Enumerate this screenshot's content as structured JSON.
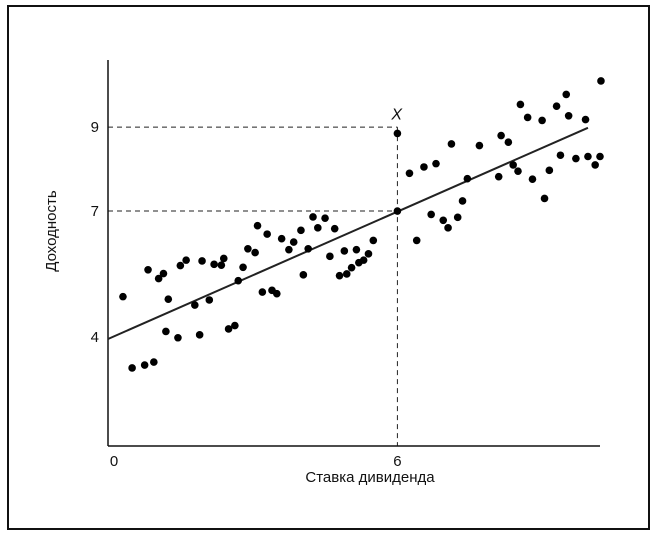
{
  "chart_data": {
    "type": "scatter",
    "title": "",
    "xlabel": "Ставка дивиденда",
    "ylabel": "Доходность",
    "xlim": [
      0,
      10.2
    ],
    "ylim": [
      1.4,
      10.6
    ],
    "x_ticks": [
      {
        "value": 0,
        "label": "0"
      },
      {
        "value": 6,
        "label": "6"
      }
    ],
    "y_ticks": [
      {
        "value": 4,
        "label": "4"
      },
      {
        "value": 7,
        "label": "7"
      },
      {
        "value": 9,
        "label": "9"
      }
    ],
    "grid": false,
    "regression_line": {
      "intercept": 3.95,
      "slope": 0.506,
      "x_range": [
        0,
        10.2
      ]
    },
    "highlight_point": {
      "x": 6,
      "y": 8.85,
      "label": "X"
    },
    "reference_lines": [
      {
        "from": [
          0,
          9
        ],
        "to": [
          6,
          9
        ]
      },
      {
        "from": [
          0,
          7
        ],
        "to": [
          6,
          7
        ]
      },
      {
        "from": [
          6,
          9
        ],
        "to": [
          6,
          1.4
        ]
      }
    ],
    "series": [
      {
        "color": "#000000",
        "points": [
          [
            0.31,
            4.96
          ],
          [
            0.5,
            3.26
          ],
          [
            0.76,
            3.33
          ],
          [
            0.95,
            3.4
          ],
          [
            0.83,
            5.6
          ],
          [
            1.05,
            5.39
          ],
          [
            1.15,
            5.51
          ],
          [
            1.25,
            4.9
          ],
          [
            1.2,
            4.13
          ],
          [
            1.45,
            3.98
          ],
          [
            1.5,
            5.7
          ],
          [
            1.62,
            5.83
          ],
          [
            1.8,
            4.76
          ],
          [
            1.9,
            4.05
          ],
          [
            1.95,
            5.81
          ],
          [
            2.1,
            4.88
          ],
          [
            2.2,
            5.73
          ],
          [
            2.35,
            5.71
          ],
          [
            2.4,
            5.87
          ],
          [
            2.5,
            4.19
          ],
          [
            2.63,
            4.27
          ],
          [
            2.7,
            5.34
          ],
          [
            2.8,
            5.66
          ],
          [
            2.9,
            6.1
          ],
          [
            3.05,
            6.01
          ],
          [
            3.1,
            6.65
          ],
          [
            3.2,
            5.07
          ],
          [
            3.3,
            6.45
          ],
          [
            3.4,
            5.11
          ],
          [
            3.5,
            5.03
          ],
          [
            3.6,
            6.34
          ],
          [
            3.75,
            6.08
          ],
          [
            3.85,
            6.26
          ],
          [
            4.0,
            6.54
          ],
          [
            4.05,
            5.48
          ],
          [
            4.15,
            6.1
          ],
          [
            4.25,
            6.86
          ],
          [
            4.35,
            6.6
          ],
          [
            4.5,
            6.83
          ],
          [
            4.6,
            5.92
          ],
          [
            4.7,
            6.58
          ],
          [
            4.8,
            5.46
          ],
          [
            4.9,
            6.05
          ],
          [
            4.95,
            5.5
          ],
          [
            5.05,
            5.65
          ],
          [
            5.15,
            6.08
          ],
          [
            5.2,
            5.77
          ],
          [
            5.3,
            5.83
          ],
          [
            5.4,
            5.98
          ],
          [
            5.5,
            6.3
          ],
          [
            6.25,
            7.9
          ],
          [
            6.4,
            6.3
          ],
          [
            6.55,
            8.05
          ],
          [
            6.7,
            6.92
          ],
          [
            6.8,
            8.13
          ],
          [
            6.95,
            6.78
          ],
          [
            7.05,
            6.6
          ],
          [
            7.12,
            8.6
          ],
          [
            7.25,
            6.85
          ],
          [
            7.35,
            7.24
          ],
          [
            7.45,
            7.77
          ],
          [
            7.7,
            8.56
          ],
          [
            8.1,
            7.82
          ],
          [
            8.15,
            8.8
          ],
          [
            8.3,
            8.64
          ],
          [
            8.4,
            8.1
          ],
          [
            8.5,
            7.95
          ],
          [
            8.55,
            9.54
          ],
          [
            8.7,
            9.23
          ],
          [
            8.8,
            7.76
          ],
          [
            9.0,
            9.16
          ],
          [
            9.05,
            7.3
          ],
          [
            9.15,
            7.97
          ],
          [
            9.3,
            9.5
          ],
          [
            9.38,
            8.33
          ],
          [
            9.5,
            9.78
          ],
          [
            9.55,
            9.27
          ],
          [
            9.7,
            8.25
          ],
          [
            9.9,
            9.18
          ],
          [
            9.95,
            8.3
          ],
          [
            10.1,
            8.1
          ],
          [
            10.2,
            8.3
          ],
          [
            10.22,
            10.1
          ]
        ]
      }
    ]
  }
}
